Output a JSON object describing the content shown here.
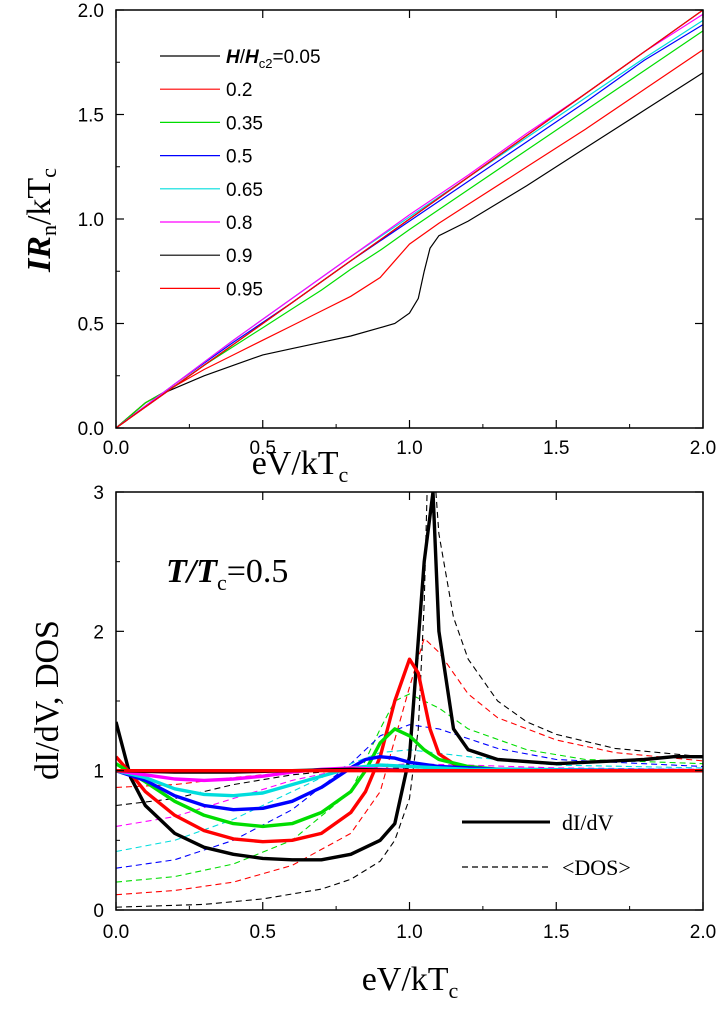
{
  "chart_data": [
    {
      "type": "line",
      "title": "",
      "xlabel": "eV/kT_c",
      "ylabel": "IR_n/kT_c",
      "xlim": [
        0,
        2
      ],
      "ylim": [
        0,
        2
      ],
      "xticks": [
        "0.0",
        "0.5",
        "1.0",
        "1.5",
        "2.0"
      ],
      "yticks": [
        "0.0",
        "0.5",
        "1.0",
        "1.5",
        "2.0"
      ],
      "legend_title": "H/H_c2",
      "legend_placement": "top-left",
      "series": [
        {
          "name": "H/Hc2=0.05",
          "label": "=0.05",
          "color": "#000000",
          "x": [
            0,
            0.1,
            0.15,
            0.2,
            0.3,
            0.4,
            0.5,
            0.6,
            0.7,
            0.8,
            0.9,
            0.95,
            1.0,
            1.03,
            1.05,
            1.07,
            1.1,
            1.2,
            1.4,
            1.6,
            1.8,
            2.0
          ],
          "y": [
            0,
            0.12,
            0.16,
            0.19,
            0.25,
            0.3,
            0.35,
            0.38,
            0.41,
            0.44,
            0.48,
            0.5,
            0.55,
            0.62,
            0.75,
            0.86,
            0.92,
            0.99,
            1.16,
            1.34,
            1.52,
            1.7
          ]
        },
        {
          "name": "0.2",
          "label": "0.2",
          "color": "#ff0000",
          "x": [
            0,
            0.1,
            0.2,
            0.3,
            0.4,
            0.5,
            0.6,
            0.7,
            0.8,
            0.9,
            0.95,
            1.0,
            1.1,
            1.2,
            1.4,
            1.6,
            1.8,
            2.0
          ],
          "y": [
            0,
            0.12,
            0.2,
            0.28,
            0.35,
            0.42,
            0.49,
            0.56,
            0.63,
            0.72,
            0.8,
            0.88,
            0.98,
            1.07,
            1.25,
            1.43,
            1.62,
            1.81
          ]
        },
        {
          "name": "0.35",
          "label": "0.35",
          "color": "#00dd00",
          "x": [
            0,
            0.1,
            0.2,
            0.3,
            0.4,
            0.5,
            0.6,
            0.7,
            0.8,
            0.9,
            1.0,
            1.2,
            1.4,
            1.6,
            1.8,
            2.0
          ],
          "y": [
            0,
            0.12,
            0.2,
            0.3,
            0.39,
            0.48,
            0.57,
            0.66,
            0.76,
            0.85,
            0.95,
            1.14,
            1.33,
            1.52,
            1.71,
            1.9
          ]
        },
        {
          "name": "0.5",
          "label": "0.5",
          "color": "#0000ff",
          "x": [
            0,
            0.2,
            0.4,
            0.6,
            0.8,
            1.0,
            1.2,
            1.4,
            1.6,
            1.8,
            2.0
          ],
          "y": [
            0,
            0.21,
            0.41,
            0.6,
            0.8,
            0.99,
            1.18,
            1.37,
            1.56,
            1.76,
            1.93
          ]
        },
        {
          "name": "0.65",
          "label": "0.65",
          "color": "#00dddd",
          "x": [
            0,
            0.2,
            0.4,
            0.6,
            0.8,
            1.0,
            1.2,
            1.4,
            1.6,
            1.8,
            2.0
          ],
          "y": [
            0,
            0.21,
            0.42,
            0.62,
            0.82,
            1.01,
            1.2,
            1.39,
            1.58,
            1.77,
            1.95
          ]
        },
        {
          "name": "0.8",
          "label": "0.8",
          "color": "#ff00ff",
          "x": [
            0,
            0.2,
            0.4,
            0.6,
            0.8,
            1.0,
            1.2,
            1.4,
            1.6,
            1.8,
            2.0
          ],
          "y": [
            0,
            0.21,
            0.42,
            0.62,
            0.82,
            1.02,
            1.21,
            1.41,
            1.6,
            1.8,
            1.98
          ]
        },
        {
          "name": "0.9",
          "label": "0.9",
          "color": "#000000",
          "x": [
            0,
            0.5,
            1.0,
            1.5,
            2.0
          ],
          "y": [
            0,
            0.5,
            1.0,
            1.5,
            2.0
          ]
        },
        {
          "name": "0.95",
          "label": "0.95",
          "color": "#ff0000",
          "x": [
            0,
            0.5,
            1.0,
            1.5,
            2.0
          ],
          "y": [
            0,
            0.5,
            1.0,
            1.5,
            2.0
          ]
        }
      ]
    },
    {
      "type": "line",
      "title": "",
      "xlabel": "eV/kT_c",
      "ylabel": "dI/dV, DOS",
      "xlim": [
        0,
        2
      ],
      "ylim": [
        0,
        3
      ],
      "xticks": [
        "0.0",
        "0.5",
        "1.0",
        "1.5",
        "2.0"
      ],
      "yticks": [
        "0",
        "1",
        "2",
        "3"
      ],
      "annotation": "T/T_c=0.5",
      "legend_placement": "bottom-right",
      "legend": [
        {
          "label": "dI/dV",
          "style": "solid"
        },
        {
          "label": "<DOS>",
          "style": "dashed"
        }
      ],
      "series_didv": [
        {
          "color": "#000000",
          "x": [
            0,
            0.05,
            0.1,
            0.2,
            0.3,
            0.4,
            0.5,
            0.6,
            0.7,
            0.8,
            0.9,
            0.95,
            1.0,
            1.05,
            1.08,
            1.1,
            1.15,
            1.2,
            1.3,
            1.5,
            1.8,
            1.9,
            2.0
          ],
          "y": [
            1.35,
            0.95,
            0.75,
            0.55,
            0.45,
            0.4,
            0.37,
            0.36,
            0.36,
            0.4,
            0.5,
            0.62,
            1.1,
            2.5,
            3.0,
            2.0,
            1.3,
            1.15,
            1.08,
            1.05,
            1.08,
            1.1,
            1.1
          ]
        },
        {
          "color": "#ff0000",
          "x": [
            0,
            0.05,
            0.1,
            0.2,
            0.3,
            0.4,
            0.5,
            0.6,
            0.7,
            0.8,
            0.85,
            0.9,
            0.95,
            1.0,
            1.03,
            1.07,
            1.1,
            1.15,
            1.2,
            1.3,
            1.5,
            2.0
          ],
          "y": [
            1.1,
            0.98,
            0.85,
            0.68,
            0.57,
            0.51,
            0.49,
            0.5,
            0.55,
            0.7,
            0.85,
            1.1,
            1.5,
            1.8,
            1.7,
            1.3,
            1.12,
            1.05,
            1.02,
            1.01,
            1.0,
            1.0
          ]
        },
        {
          "color": "#00dd00",
          "x": [
            0,
            0.1,
            0.2,
            0.3,
            0.4,
            0.5,
            0.6,
            0.7,
            0.8,
            0.85,
            0.9,
            0.95,
            1.0,
            1.05,
            1.1,
            1.2,
            1.3,
            1.5,
            2.0
          ],
          "y": [
            1.05,
            0.92,
            0.78,
            0.68,
            0.62,
            0.6,
            0.62,
            0.7,
            0.85,
            1.0,
            1.2,
            1.3,
            1.25,
            1.15,
            1.08,
            1.03,
            1.01,
            1.0,
            1.0
          ]
        },
        {
          "color": "#0000ff",
          "x": [
            0,
            0.1,
            0.2,
            0.3,
            0.4,
            0.5,
            0.6,
            0.7,
            0.8,
            0.85,
            0.9,
            0.95,
            1.0,
            1.1,
            1.3,
            2.0
          ],
          "y": [
            1.0,
            0.93,
            0.82,
            0.75,
            0.72,
            0.73,
            0.78,
            0.88,
            1.02,
            1.08,
            1.1,
            1.09,
            1.06,
            1.03,
            1.01,
            1.0
          ]
        },
        {
          "color": "#00dddd",
          "x": [
            0,
            0.1,
            0.2,
            0.3,
            0.4,
            0.5,
            0.6,
            0.7,
            0.8,
            0.9,
            1.0,
            1.2,
            2.0
          ],
          "y": [
            1.0,
            0.95,
            0.87,
            0.83,
            0.82,
            0.84,
            0.9,
            0.96,
            1.02,
            1.04,
            1.03,
            1.01,
            1.0
          ]
        },
        {
          "color": "#ff00ff",
          "x": [
            0,
            0.1,
            0.2,
            0.3,
            0.4,
            0.5,
            0.6,
            0.7,
            0.8,
            0.9,
            1.0,
            2.0
          ],
          "y": [
            1.0,
            0.97,
            0.94,
            0.93,
            0.94,
            0.96,
            0.99,
            1.01,
            1.02,
            1.01,
            1.0,
            1.0
          ]
        },
        {
          "color": "#000000",
          "x": [
            0,
            0.2,
            0.4,
            0.6,
            0.8,
            1.0,
            1.5,
            2.0
          ],
          "y": [
            1.0,
            0.99,
            0.99,
            1.0,
            1.01,
            1.0,
            1.0,
            1.0
          ]
        },
        {
          "color": "#ff0000",
          "x": [
            0,
            0.5,
            1.0,
            1.5,
            2.0
          ],
          "y": [
            1.0,
            1.0,
            1.0,
            1.0,
            1.0
          ]
        }
      ],
      "series_dos": [
        {
          "color": "#000000",
          "x": [
            0,
            0.3,
            0.5,
            0.7,
            0.8,
            0.9,
            0.95,
            1.0,
            1.03,
            1.05,
            1.06
          ],
          "y": [
            0.02,
            0.04,
            0.08,
            0.15,
            0.22,
            0.35,
            0.5,
            0.8,
            1.3,
            2.2,
            3.0
          ]
        },
        {
          "color": "#000000",
          "x": [
            1.09,
            1.1,
            1.15,
            1.2,
            1.3,
            1.4,
            1.5,
            1.7,
            2.0
          ],
          "y": [
            3.0,
            2.7,
            2.1,
            1.8,
            1.5,
            1.35,
            1.26,
            1.16,
            1.1
          ]
        },
        {
          "color": "#ff0000",
          "x": [
            0,
            0.2,
            0.4,
            0.6,
            0.8,
            0.9,
            1.0,
            1.05,
            1.1,
            1.2,
            1.3,
            1.5,
            1.7,
            2.0
          ],
          "y": [
            0.11,
            0.14,
            0.2,
            0.32,
            0.55,
            0.85,
            1.6,
            1.95,
            1.85,
            1.55,
            1.38,
            1.22,
            1.13,
            1.07
          ]
        },
        {
          "color": "#00dd00",
          "x": [
            0,
            0.2,
            0.4,
            0.6,
            0.8,
            0.9,
            0.95,
            1.0,
            1.1,
            1.2,
            1.4,
            1.6,
            2.0
          ],
          "y": [
            0.2,
            0.24,
            0.33,
            0.5,
            0.85,
            1.3,
            1.5,
            1.55,
            1.45,
            1.3,
            1.15,
            1.08,
            1.05
          ]
        },
        {
          "color": "#0000ff",
          "x": [
            0,
            0.2,
            0.4,
            0.6,
            0.8,
            0.9,
            1.0,
            1.1,
            1.3,
            1.5,
            2.0
          ],
          "y": [
            0.3,
            0.36,
            0.5,
            0.72,
            1.05,
            1.25,
            1.33,
            1.3,
            1.16,
            1.08,
            1.03
          ]
        },
        {
          "color": "#00dddd",
          "x": [
            0,
            0.2,
            0.4,
            0.6,
            0.8,
            0.9,
            1.0,
            1.2,
            1.5,
            2.0
          ],
          "y": [
            0.42,
            0.5,
            0.65,
            0.85,
            1.05,
            1.13,
            1.15,
            1.1,
            1.04,
            1.02
          ]
        },
        {
          "color": "#ff00ff",
          "x": [
            0,
            0.2,
            0.4,
            0.6,
            0.8,
            1.0,
            1.2,
            1.5,
            2.0
          ],
          "y": [
            0.6,
            0.67,
            0.8,
            0.93,
            1.02,
            1.05,
            1.04,
            1.02,
            1.01
          ]
        },
        {
          "color": "#000000",
          "x": [
            0,
            0.2,
            0.4,
            0.6,
            0.8,
            1.0,
            1.3,
            2.0
          ],
          "y": [
            0.75,
            0.8,
            0.9,
            0.97,
            1.01,
            1.02,
            1.01,
            1.0
          ]
        },
        {
          "color": "#ff0000",
          "x": [
            0,
            0.2,
            0.4,
            0.6,
            0.8,
            1.0,
            2.0
          ],
          "y": [
            0.88,
            0.9,
            0.95,
            0.99,
            1.0,
            1.0,
            1.0
          ]
        }
      ]
    }
  ],
  "text": {
    "top_legend_prefix": "H/H",
    "top_legend_sub": "c2",
    "top_xlabel_main": "eV/kT",
    "top_xlabel_sub": "c",
    "top_ylabel_main": "IR",
    "top_ylabel_sub_n": "n",
    "top_ylabel_rest": "/kT",
    "top_ylabel_sub_c": "c",
    "annot_main": "T/T",
    "annot_sub": "c",
    "annot_rest": "=0.5",
    "bottom_ylabel": "dI/dV, DOS",
    "bottom_xlabel_main": "eV/kT",
    "bottom_xlabel_sub": "c",
    "legend2_solid": "dI/dV",
    "legend2_dashed": "<DOS>"
  }
}
